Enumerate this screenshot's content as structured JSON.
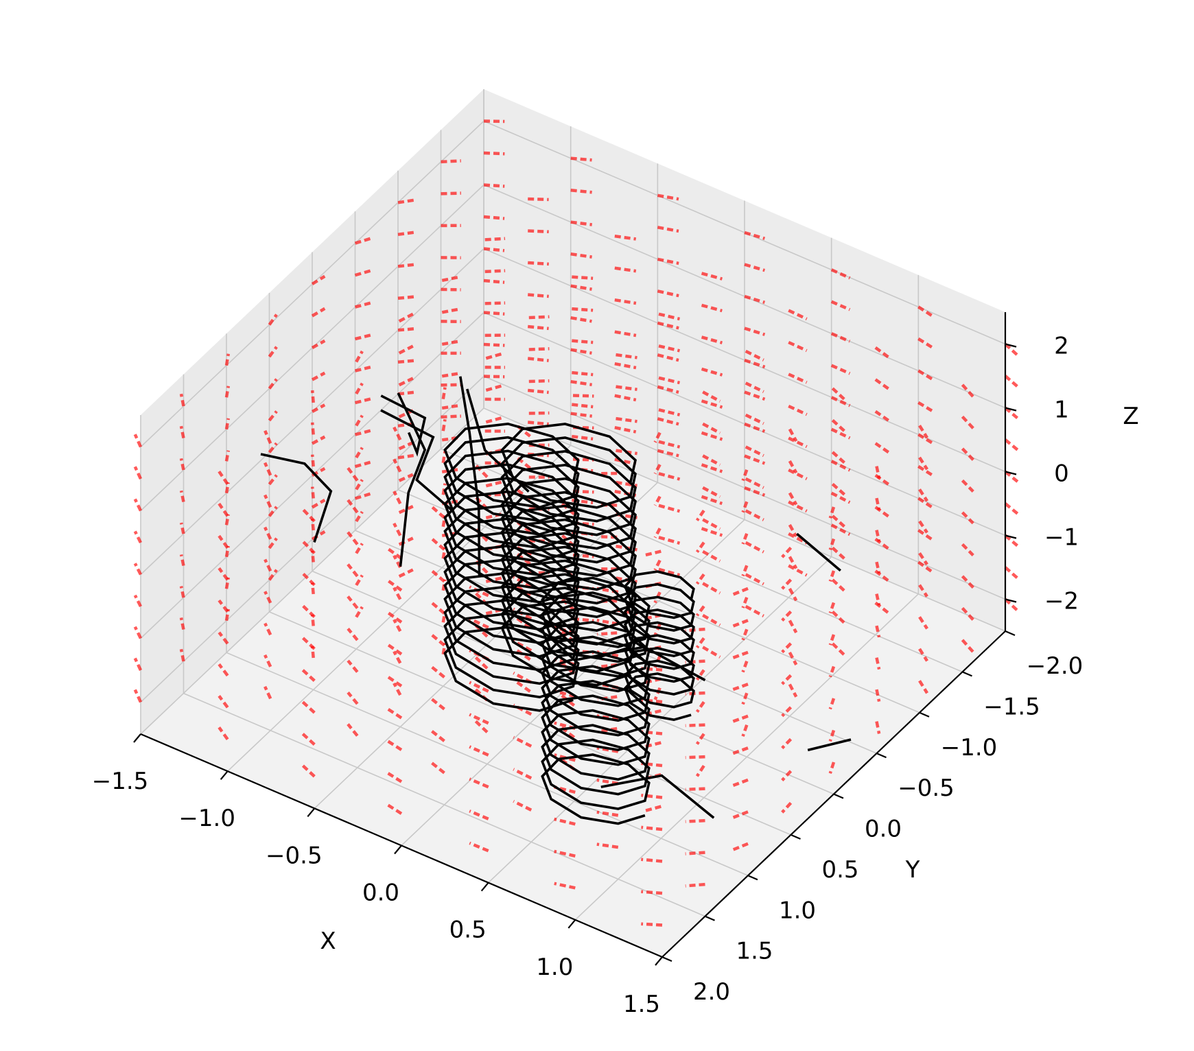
{
  "chart_data": {
    "type": "3d-quiver-streamlines",
    "title": "",
    "xlabel": "X",
    "ylabel": "Y",
    "zlabel": "Z",
    "xlim": [
      -1.5,
      1.5
    ],
    "ylim": [
      -2.0,
      2.0
    ],
    "zlim": [
      -2.5,
      2.5
    ],
    "x_ticks": [
      -1.5,
      -1.0,
      -0.5,
      0.0,
      0.5,
      1.0,
      1.5
    ],
    "y_ticks": [
      -2.0,
      -1.5,
      -1.0,
      -0.5,
      0.0,
      0.5,
      1.0,
      1.5,
      2.0
    ],
    "z_ticks": [
      -2,
      -1,
      0,
      1,
      2
    ],
    "x_tick_labels": [
      "−1.5",
      "−1.0",
      "−0.5",
      "0.0",
      "0.5",
      "1.0",
      "1.5"
    ],
    "y_tick_labels": [
      "−2.0",
      "−1.5",
      "−1.0",
      "−0.5",
      "0.0",
      "0.5",
      "1.0",
      "1.5",
      "2.0"
    ],
    "z_tick_labels": [
      "−2",
      "−1",
      "0",
      "1",
      "2"
    ],
    "grid": true,
    "quiver": {
      "color": "#ff0000",
      "alpha": 0.65,
      "x_range": [
        -1.5,
        1.5
      ],
      "y_range": [
        -2.0,
        2.0
      ],
      "z_range": [
        -2.0,
        2.0
      ],
      "grid_points": [
        7,
        9,
        9
      ],
      "vortex_centers": [
        [
          -0.2,
          0.3
        ],
        [
          0.5,
          -0.2
        ],
        [
          0.8,
          1.0
        ]
      ]
    },
    "streamlines": {
      "color": "#000000",
      "helices": [
        {
          "center": [
            -0.25,
            0.2
          ],
          "radius": 0.35,
          "z_range": [
            -2.4,
            1.0
          ],
          "loops": 16
        },
        {
          "center": [
            0.35,
            0.75
          ],
          "radius": 0.35,
          "z_range": [
            -0.6,
            2.4
          ],
          "loops": 14
        },
        {
          "center": [
            0.45,
            -0.1
          ],
          "radius": 0.18,
          "z_range": [
            -2.4,
            -0.6
          ],
          "loops": 9
        },
        {
          "center": [
            0.8,
            1.35
          ],
          "radius": 0.28,
          "z_range": [
            -1.6,
            1.4
          ],
          "loops": 13
        }
      ],
      "curves": [
        [
          [
            -1.5,
            0.6,
            0.1
          ],
          [
            -1.1,
            0.9,
            0.8
          ],
          [
            -0.8,
            1.2,
            1.1
          ],
          [
            -0.6,
            1.8,
            1.3
          ]
        ],
        [
          [
            -1.4,
            -0.6,
            -0.4
          ],
          [
            -1.0,
            -0.3,
            0.1
          ],
          [
            -0.7,
            0.4,
            0.8
          ],
          [
            -0.55,
            0.8,
            1.8
          ]
        ],
        [
          [
            -1.5,
            -0.8,
            -1.0
          ],
          [
            -1.1,
            -0.6,
            -0.7
          ],
          [
            -0.8,
            0.2,
            0.0
          ],
          [
            -0.4,
            0.6,
            0.5
          ]
        ],
        [
          [
            -1.45,
            -0.9,
            -0.8
          ],
          [
            -1.0,
            -0.3,
            -0.4
          ],
          [
            -0.7,
            0.5,
            0.3
          ],
          [
            -0.45,
            1.1,
            0.2
          ]
        ],
        [
          [
            -0.5,
            0.3,
            2.1
          ],
          [
            -0.2,
            0.8,
            2.2
          ],
          [
            0.1,
            1.3,
            2.0
          ],
          [
            0.3,
            1.7,
            1.7
          ]
        ],
        [
          [
            0.9,
            1.8,
            1.2
          ],
          [
            1.2,
            1.6,
            1.5
          ],
          [
            1.5,
            1.5,
            1.2
          ]
        ],
        [
          [
            1.0,
            1.7,
            -0.8
          ],
          [
            1.3,
            1.6,
            -0.4
          ],
          [
            1.55,
            1.5,
            -0.9
          ]
        ],
        [
          [
            0.4,
            -1.8,
            -2.0
          ],
          [
            0.7,
            -1.7,
            -2.1
          ]
        ],
        [
          [
            -1.3,
            -1.4,
            -1.2
          ],
          [
            -1.0,
            -1.0,
            -1.3
          ],
          [
            -0.6,
            -0.7,
            -1.1
          ]
        ],
        [
          [
            1.4,
            0.1,
            -1.8
          ],
          [
            1.5,
            -0.2,
            -1.9
          ]
        ]
      ]
    }
  }
}
